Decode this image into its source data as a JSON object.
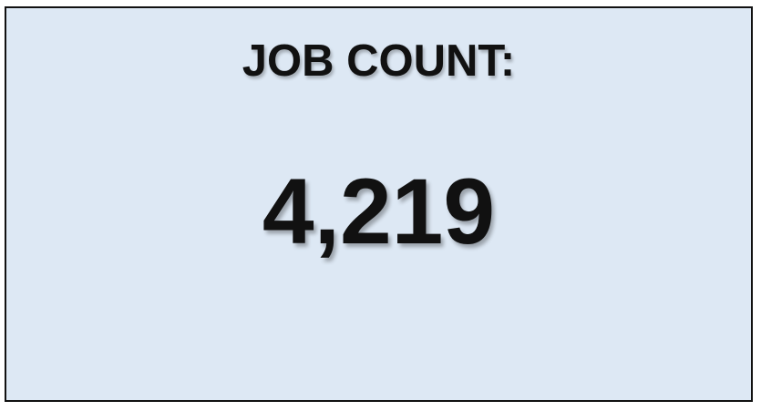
{
  "card": {
    "label": "JOB COUNT:",
    "value": "4,219",
    "background_color": "#dde8f4",
    "border_color": "#111111",
    "text_color": "#111111"
  }
}
